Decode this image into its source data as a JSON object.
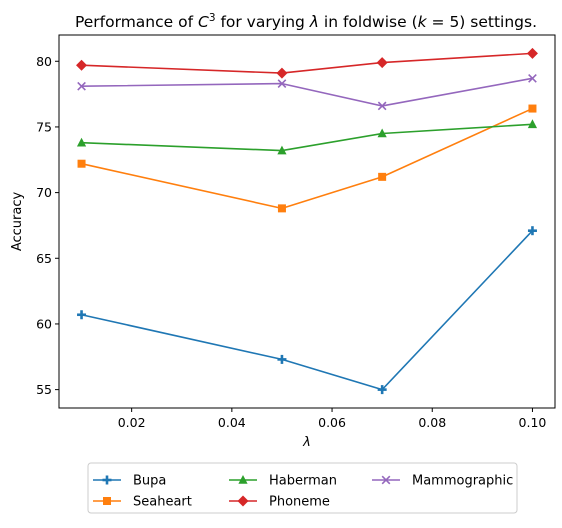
{
  "chart_data": {
    "type": "line",
    "title_parts": {
      "prefix": "Performance of ",
      "var_base": "C",
      "var_sup": "3",
      "middle": " for varying ",
      "lambda_symbol": "λ",
      "infix": " in foldwise (",
      "k_symbol": "k",
      "suffix": " = 5) settings."
    },
    "xlabel": "λ",
    "ylabel": "Accuracy",
    "x": [
      0.01,
      0.05,
      0.07,
      0.1
    ],
    "xlim": [
      0.0055,
      0.1045
    ],
    "ylim": [
      53.6,
      82.0
    ],
    "xticks": [
      0.02,
      0.04,
      0.06,
      0.08,
      0.1
    ],
    "xtick_labels": [
      "0.02",
      "0.04",
      "0.06",
      "0.08",
      "0.10"
    ],
    "yticks": [
      55,
      60,
      65,
      70,
      75,
      80
    ],
    "ytick_labels": [
      "55",
      "60",
      "65",
      "70",
      "75",
      "80"
    ],
    "grid": false,
    "legend_position": "below-center",
    "legend_columns": 3,
    "series": [
      {
        "name": "Bupa",
        "values": [
          60.7,
          57.3,
          55.0,
          67.1
        ],
        "color": "#1f77b4",
        "marker": "plus"
      },
      {
        "name": "Seaheart",
        "values": [
          72.2,
          68.8,
          71.2,
          76.4
        ],
        "color": "#ff7f0e",
        "marker": "square"
      },
      {
        "name": "Haberman",
        "values": [
          73.8,
          73.2,
          74.5,
          75.2
        ],
        "color": "#2ca02c",
        "marker": "triangle"
      },
      {
        "name": "Phoneme",
        "values": [
          79.7,
          79.1,
          79.9,
          80.6
        ],
        "color": "#d62728",
        "marker": "diamond"
      },
      {
        "name": "Mammographic",
        "values": [
          78.1,
          78.3,
          76.6,
          78.7
        ],
        "color": "#9467bd",
        "marker": "x"
      }
    ]
  }
}
